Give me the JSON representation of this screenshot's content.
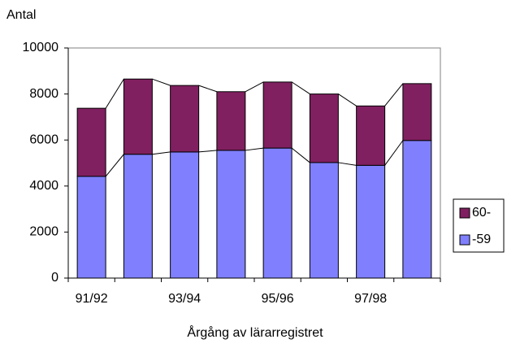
{
  "chart_data": {
    "type": "stacked-bar",
    "y_label": "Antal",
    "x_label": "Årgång av lärarregistret",
    "categories": [
      "91/92",
      null,
      "93/94",
      null,
      "95/96",
      null,
      "97/98",
      null
    ],
    "series": [
      {
        "name": "-59",
        "color": "#8080ff",
        "values": [
          4420,
          5380,
          5480,
          5550,
          5650,
          5020,
          4900,
          5980
        ]
      },
      {
        "name": "60-",
        "color": "#802060",
        "values": [
          2960,
          3270,
          2890,
          2550,
          2870,
          2980,
          2580,
          2470
        ]
      }
    ],
    "ylim": [
      0,
      10000
    ],
    "yticks": [
      0,
      2000,
      4000,
      6000,
      8000,
      10000
    ],
    "series_lines": true,
    "legend": "right"
  }
}
